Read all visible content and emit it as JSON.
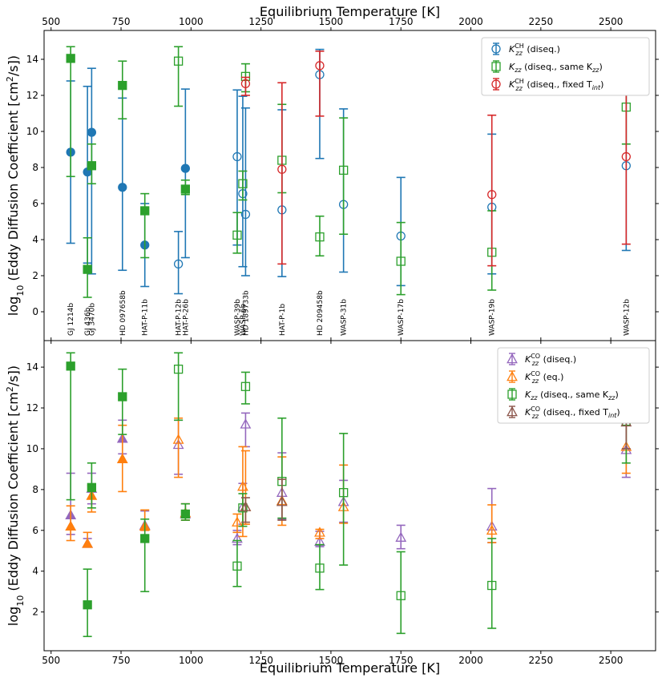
{
  "chart_data": {
    "type": "scatter",
    "x_label": "Equilibrium Temperature [K]",
    "y_label_parts": [
      "log",
      "10",
      " (Eddy Diffusion Coefficient [cm",
      "2",
      "/s])"
    ],
    "xlim": [
      475,
      2660
    ],
    "x_ticks": [
      500,
      750,
      1000,
      1250,
      1500,
      1750,
      2000,
      2250,
      2500
    ],
    "planets": [
      {
        "name": "GJ 1214b",
        "teq": 570
      },
      {
        "name": "GJ 436b",
        "teq": 630
      },
      {
        "name": "GJ 3470b",
        "teq": 645
      },
      {
        "name": "HD 097658b",
        "teq": 755
      },
      {
        "name": "HAT-P-11b",
        "teq": 835
      },
      {
        "name": "HAT-P-12b",
        "teq": 955
      },
      {
        "name": "HAT-P-26b",
        "teq": 980
      },
      {
        "name": "WASP-39b",
        "teq": 1165
      },
      {
        "name": "WASP-6b",
        "teq": 1185
      },
      {
        "name": "HD 189733b",
        "teq": 1195
      },
      {
        "name": "HAT-P-1b",
        "teq": 1325
      },
      {
        "name": "HD 209458b",
        "teq": 1460
      },
      {
        "name": "WASP-31b",
        "teq": 1545
      },
      {
        "name": "WASP-17b",
        "teq": 1750
      },
      {
        "name": "WASP-19b",
        "teq": 2075
      },
      {
        "name": "WASP-12b",
        "teq": 2555
      }
    ],
    "panels": [
      {
        "id": "top",
        "ylim": [
          -1.6,
          15.6
        ],
        "y_ticks": [
          0,
          2,
          4,
          6,
          8,
          10,
          12,
          14
        ],
        "series": [
          {
            "name": "Kzz CH4 (diseq.)",
            "color": "#1f77b4",
            "marker": "circle",
            "points": [
              {
                "x": 570,
                "y": 8.85,
                "lo": 3.8,
                "hi": 12.8,
                "filled": true
              },
              {
                "x": 630,
                "y": 7.75,
                "lo": 2.7,
                "hi": 12.5,
                "filled": true
              },
              {
                "x": 645,
                "y": 9.95,
                "lo": 2.1,
                "hi": 13.5,
                "filled": true
              },
              {
                "x": 755,
                "y": 6.9,
                "lo": 2.3,
                "hi": 11.85,
                "filled": true
              },
              {
                "x": 835,
                "y": 3.7,
                "lo": 1.4,
                "hi": 6.0,
                "filled": true
              },
              {
                "x": 955,
                "y": 2.65,
                "lo": 1.0,
                "hi": 4.45,
                "filled": false
              },
              {
                "x": 980,
                "y": 7.95,
                "lo": 3.0,
                "hi": 12.35,
                "filled": true
              },
              {
                "x": 1165,
                "y": 8.6,
                "lo": 3.7,
                "hi": 12.3,
                "filled": false
              },
              {
                "x": 1185,
                "y": 6.55,
                "lo": 2.5,
                "hi": 11.95,
                "filled": false
              },
              {
                "x": 1195,
                "y": 5.4,
                "lo": 2.0,
                "hi": 11.3,
                "filled": false
              },
              {
                "x": 1325,
                "y": 5.65,
                "lo": 1.95,
                "hi": 11.2,
                "filled": false
              },
              {
                "x": 1460,
                "y": 13.15,
                "lo": 8.5,
                "hi": 14.55,
                "filled": false
              },
              {
                "x": 1545,
                "y": 5.95,
                "lo": 2.2,
                "hi": 11.25,
                "filled": false
              },
              {
                "x": 1750,
                "y": 4.2,
                "lo": 1.45,
                "hi": 7.45,
                "filled": false
              },
              {
                "x": 2075,
                "y": 5.8,
                "lo": 2.1,
                "hi": 9.85,
                "filled": false
              },
              {
                "x": 2555,
                "y": 8.1,
                "lo": 3.4,
                "hi": 12.2,
                "filled": false
              }
            ]
          },
          {
            "name": "Kzz (diseq., same Kzz)",
            "color": "#2ca02c",
            "marker": "square",
            "points": [
              {
                "x": 570,
                "y": 14.05,
                "lo": 7.5,
                "hi": 14.7,
                "filled": true
              },
              {
                "x": 630,
                "y": 2.35,
                "lo": 0.8,
                "hi": 4.1,
                "filled": true
              },
              {
                "x": 645,
                "y": 8.1,
                "lo": 7.1,
                "hi": 9.3,
                "filled": true
              },
              {
                "x": 755,
                "y": 12.55,
                "lo": 10.7,
                "hi": 13.9,
                "filled": true
              },
              {
                "x": 835,
                "y": 5.6,
                "lo": 3.0,
                "hi": 6.55,
                "filled": true
              },
              {
                "x": 955,
                "y": 13.9,
                "lo": 11.4,
                "hi": 14.7,
                "filled": false
              },
              {
                "x": 980,
                "y": 6.8,
                "lo": 6.5,
                "hi": 7.3,
                "filled": true
              },
              {
                "x": 1165,
                "y": 4.25,
                "lo": 3.25,
                "hi": 5.5,
                "filled": false
              },
              {
                "x": 1185,
                "y": 7.1,
                "lo": 6.2,
                "hi": 7.8,
                "filled": false
              },
              {
                "x": 1195,
                "y": 13.05,
                "lo": 12.2,
                "hi": 13.75,
                "filled": false
              },
              {
                "x": 1325,
                "y": 8.4,
                "lo": 6.6,
                "hi": 11.5,
                "filled": false
              },
              {
                "x": 1460,
                "y": 4.15,
                "lo": 3.1,
                "hi": 5.3,
                "filled": false
              },
              {
                "x": 1545,
                "y": 7.85,
                "lo": 4.3,
                "hi": 10.75,
                "filled": false
              },
              {
                "x": 1750,
                "y": 2.8,
                "lo": 0.95,
                "hi": 4.95,
                "filled": false
              },
              {
                "x": 2075,
                "y": 3.3,
                "lo": 1.2,
                "hi": 5.6,
                "filled": false
              },
              {
                "x": 2555,
                "y": 11.35,
                "lo": 9.3,
                "hi": 13.5,
                "filled": false
              }
            ]
          },
          {
            "name": "Kzz CH4 (diseq., fixed Tint)",
            "color": "#d62728",
            "marker": "circle",
            "points": [
              {
                "x": 1195,
                "y": 12.65,
                "lo": 12.0,
                "hi": 13.0,
                "filled": false
              },
              {
                "x": 1325,
                "y": 7.9,
                "lo": 2.65,
                "hi": 12.7,
                "filled": false
              },
              {
                "x": 1460,
                "y": 13.65,
                "lo": 10.85,
                "hi": 14.45,
                "filled": false
              },
              {
                "x": 2075,
                "y": 6.5,
                "lo": 2.55,
                "hi": 10.9,
                "filled": false
              },
              {
                "x": 2555,
                "y": 8.6,
                "lo": 3.75,
                "hi": 12.7,
                "filled": false
              }
            ]
          }
        ],
        "legend": [
          {
            "color": "#1f77b4",
            "marker": "circle",
            "base": "K",
            "sub": "zz",
            "sup": "CH",
            "rest": " (diseq.)"
          },
          {
            "color": "#2ca02c",
            "marker": "square",
            "base": "K",
            "sub": "zz",
            "sup": "",
            "rest": " (diseq., same K",
            "rest_sub": "zz",
            "rest_end": ")"
          },
          {
            "color": "#d62728",
            "marker": "circle",
            "base": "K",
            "sub": "zz",
            "sup": "CH",
            "rest": " (diseq., fixed T",
            "rest_sub": "int",
            "rest_end": ")"
          }
        ]
      },
      {
        "id": "bottom",
        "ylim": [
          0.1,
          15.3
        ],
        "y_ticks": [
          2,
          4,
          6,
          8,
          10,
          12,
          14
        ],
        "series": [
          {
            "name": "Kzz CO (diseq.)",
            "color": "#9467bd",
            "marker": "triangle",
            "points": [
              {
                "x": 570,
                "y": 6.75,
                "lo": 5.8,
                "hi": 8.8,
                "filled": true
              },
              {
                "x": 630,
                "y": 5.35,
                "lo": 5.2,
                "hi": 5.6,
                "filled": true
              },
              {
                "x": 645,
                "y": 8.05,
                "lo": 7.3,
                "hi": 8.8,
                "filled": true
              },
              {
                "x": 755,
                "y": 10.5,
                "lo": 9.75,
                "hi": 11.4,
                "filled": true
              },
              {
                "x": 835,
                "y": 6.25,
                "lo": 6.0,
                "hi": 6.95,
                "filled": true
              },
              {
                "x": 955,
                "y": 10.2,
                "lo": 8.75,
                "hi": 11.4,
                "filled": false
              },
              {
                "x": 980,
                "y": 6.8,
                "lo": 6.5,
                "hi": 7.3,
                "filled": true
              },
              {
                "x": 1165,
                "y": 5.6,
                "lo": 5.3,
                "hi": 6.0,
                "filled": false
              },
              {
                "x": 1185,
                "y": 7.15,
                "lo": 6.3,
                "hi": 8.3,
                "filled": false
              },
              {
                "x": 1195,
                "y": 11.2,
                "lo": 10.1,
                "hi": 11.75,
                "filled": false
              },
              {
                "x": 1325,
                "y": 7.85,
                "lo": 6.55,
                "hi": 9.8,
                "filled": false
              },
              {
                "x": 1460,
                "y": 5.45,
                "lo": 5.2,
                "hi": 5.95,
                "filled": false
              },
              {
                "x": 1545,
                "y": 7.4,
                "lo": 6.4,
                "hi": 8.45,
                "filled": false
              },
              {
                "x": 1750,
                "y": 5.65,
                "lo": 5.1,
                "hi": 6.25,
                "filled": false
              },
              {
                "x": 2075,
                "y": 6.2,
                "lo": 5.4,
                "hi": 8.05,
                "filled": false
              },
              {
                "x": 2555,
                "y": 9.95,
                "lo": 8.6,
                "hi": 11.3,
                "filled": false
              }
            ]
          },
          {
            "name": "Kzz CO (eq.)",
            "color": "#ff7f0e",
            "marker": "triangle",
            "points": [
              {
                "x": 570,
                "y": 6.2,
                "lo": 5.5,
                "hi": 7.2,
                "filled": true
              },
              {
                "x": 630,
                "y": 5.35,
                "lo": 5.2,
                "hi": 5.9,
                "filled": true
              },
              {
                "x": 645,
                "y": 7.7,
                "lo": 6.9,
                "hi": 8.2,
                "filled": true
              },
              {
                "x": 755,
                "y": 9.5,
                "lo": 7.9,
                "hi": 11.15,
                "filled": true
              },
              {
                "x": 835,
                "y": 6.2,
                "lo": 6.0,
                "hi": 7.0,
                "filled": true
              },
              {
                "x": 955,
                "y": 10.45,
                "lo": 8.6,
                "hi": 11.5,
                "filled": false
              },
              {
                "x": 980,
                "y": 6.85,
                "lo": 6.5,
                "hi": 7.3,
                "filled": true
              },
              {
                "x": 1165,
                "y": 6.4,
                "lo": 5.9,
                "hi": 6.8,
                "filled": false
              },
              {
                "x": 1185,
                "y": 8.15,
                "lo": 5.7,
                "hi": 10.1,
                "filled": false
              },
              {
                "x": 1195,
                "y": 7.15,
                "lo": 6.3,
                "hi": 9.9,
                "filled": false
              },
              {
                "x": 1325,
                "y": 7.45,
                "lo": 6.25,
                "hi": 9.6,
                "filled": false
              },
              {
                "x": 1460,
                "y": 5.9,
                "lo": 5.6,
                "hi": 6.05,
                "filled": false
              },
              {
                "x": 1545,
                "y": 7.15,
                "lo": 6.35,
                "hi": 9.2,
                "filled": false
              },
              {
                "x": 2075,
                "y": 6.0,
                "lo": 5.4,
                "hi": 7.25,
                "filled": false
              },
              {
                "x": 2555,
                "y": 10.1,
                "lo": 8.8,
                "hi": 11.35,
                "filled": false
              }
            ]
          },
          {
            "name": "Kzz (diseq., same Kzz)",
            "color": "#2ca02c",
            "marker": "square",
            "points": [
              {
                "x": 570,
                "y": 14.05,
                "lo": 7.5,
                "hi": 14.7,
                "filled": true
              },
              {
                "x": 630,
                "y": 2.35,
                "lo": 0.8,
                "hi": 4.1,
                "filled": true
              },
              {
                "x": 645,
                "y": 8.1,
                "lo": 7.1,
                "hi": 9.3,
                "filled": true
              },
              {
                "x": 755,
                "y": 12.55,
                "lo": 10.7,
                "hi": 13.9,
                "filled": true
              },
              {
                "x": 835,
                "y": 5.6,
                "lo": 3.0,
                "hi": 6.55,
                "filled": true
              },
              {
                "x": 955,
                "y": 13.9,
                "lo": 11.4,
                "hi": 14.7,
                "filled": false
              },
              {
                "x": 980,
                "y": 6.8,
                "lo": 6.5,
                "hi": 7.3,
                "filled": true
              },
              {
                "x": 1165,
                "y": 4.25,
                "lo": 3.25,
                "hi": 5.5,
                "filled": false
              },
              {
                "x": 1185,
                "y": 7.1,
                "lo": 6.2,
                "hi": 7.8,
                "filled": false
              },
              {
                "x": 1195,
                "y": 13.05,
                "lo": 12.2,
                "hi": 13.75,
                "filled": false
              },
              {
                "x": 1325,
                "y": 8.4,
                "lo": 6.6,
                "hi": 11.5,
                "filled": false
              },
              {
                "x": 1460,
                "y": 4.15,
                "lo": 3.1,
                "hi": 5.3,
                "filled": false
              },
              {
                "x": 1545,
                "y": 7.85,
                "lo": 4.3,
                "hi": 10.75,
                "filled": false
              },
              {
                "x": 1750,
                "y": 2.8,
                "lo": 0.95,
                "hi": 4.95,
                "filled": false
              },
              {
                "x": 2075,
                "y": 3.3,
                "lo": 1.2,
                "hi": 5.6,
                "filled": false
              },
              {
                "x": 2555,
                "y": 11.35,
                "lo": 9.3,
                "hi": 13.5,
                "filled": false
              }
            ]
          },
          {
            "name": "Kzz CO (diseq., fixed Tint)",
            "color": "#8c564b",
            "marker": "triangle",
            "points": [
              {
                "x": 1195,
                "y": 7.15,
                "lo": 6.4,
                "hi": 7.6,
                "filled": false
              },
              {
                "x": 1325,
                "y": 7.4,
                "lo": 6.5,
                "hi": 8.5,
                "filled": false
              },
              {
                "x": 2555,
                "y": 11.3,
                "lo": 10.0,
                "hi": 11.5,
                "filled": false
              }
            ]
          }
        ],
        "legend": [
          {
            "color": "#9467bd",
            "marker": "triangle",
            "base": "K",
            "sub": "zz",
            "sup": "CO",
            "rest": " (diseq.)"
          },
          {
            "color": "#ff7f0e",
            "marker": "triangle",
            "base": "K",
            "sub": "zz",
            "sup": "CO",
            "rest": " (eq.)"
          },
          {
            "color": "#2ca02c",
            "marker": "square",
            "base": "K",
            "sub": "zz",
            "sup": "",
            "rest": " (diseq., same K",
            "rest_sub": "zz",
            "rest_end": ")"
          },
          {
            "color": "#8c564b",
            "marker": "triangle",
            "base": "K",
            "sub": "zz",
            "sup": "CO",
            "rest": " (diseq., fixed T",
            "rest_sub": "int",
            "rest_end": ")"
          }
        ]
      }
    ]
  }
}
